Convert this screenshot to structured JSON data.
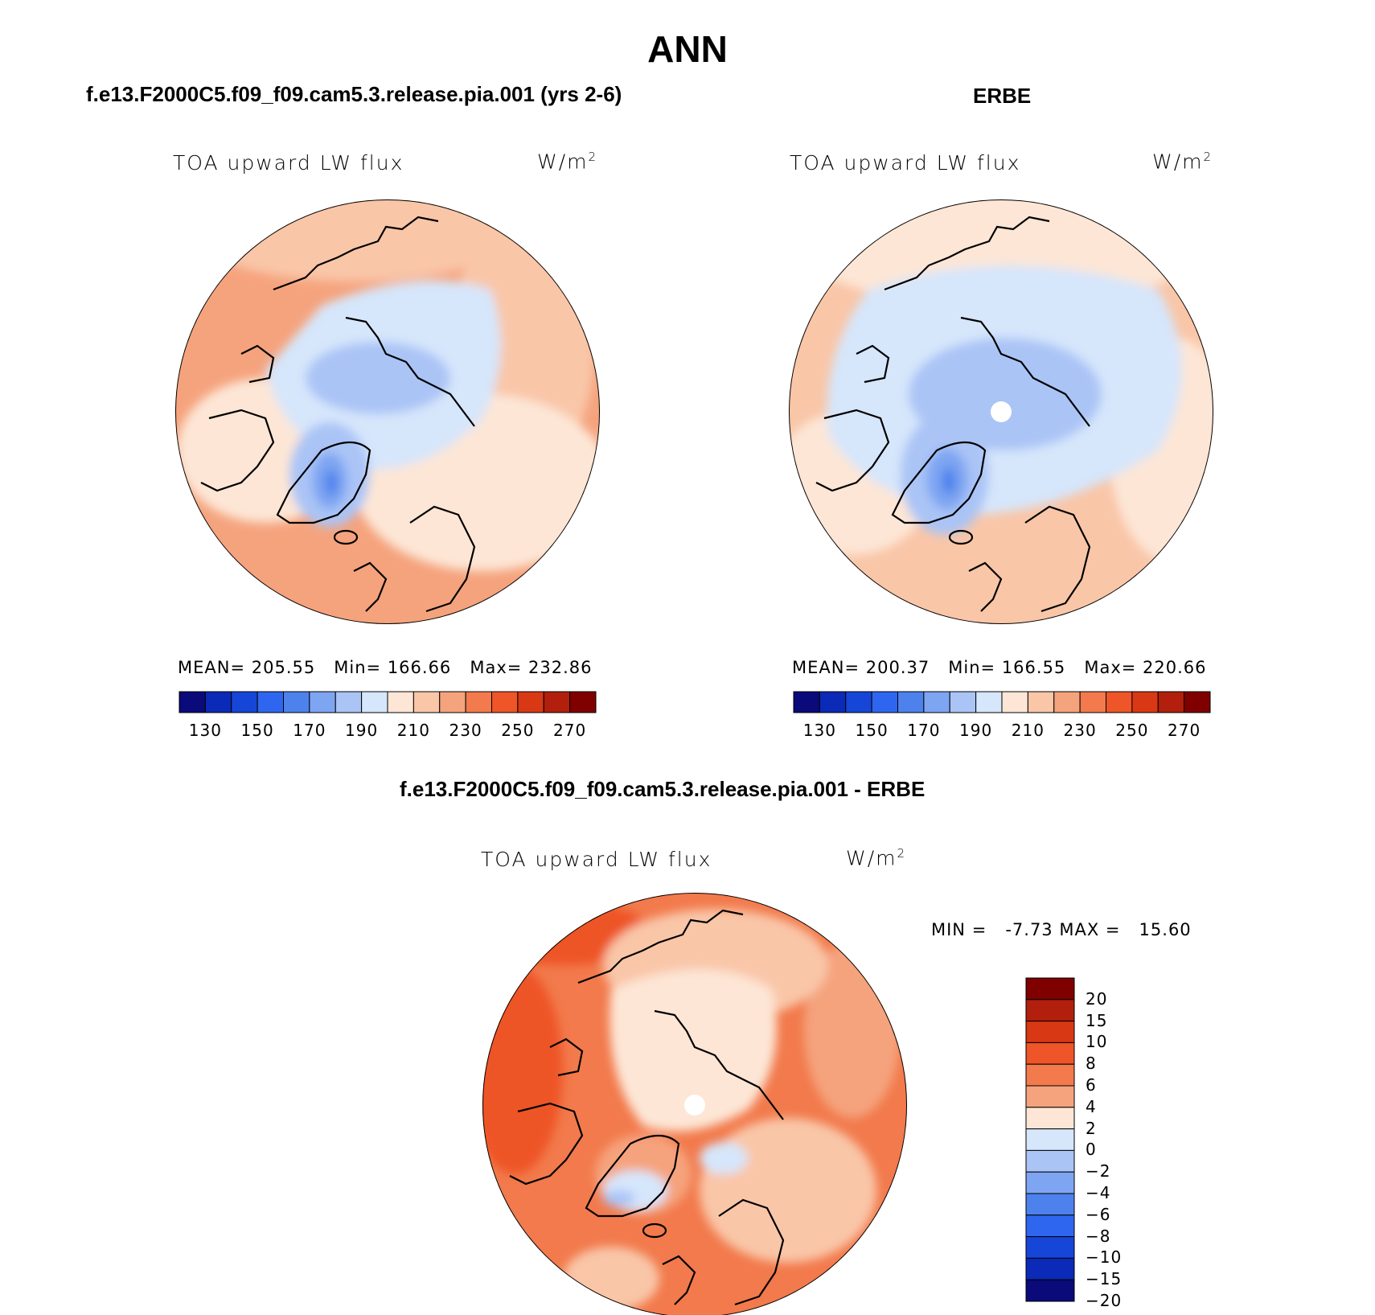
{
  "title": "ANN",
  "panels": [
    {
      "id": "model",
      "title": "f.e13.F2000C5.f09_f09.cam5.3.release.pia.001 (yrs 2-6)",
      "variable": "TOA upward LW flux",
      "units_base": "W/m",
      "units_exp": "2",
      "stats": {
        "mean_label": "MEAN=",
        "mean": "205.55",
        "min_label": "Min=",
        "min": "166.66",
        "max_label": "Max=",
        "max": "232.86"
      }
    },
    {
      "id": "obs",
      "title": "ERBE",
      "variable": "TOA upward LW flux",
      "units_base": "W/m",
      "units_exp": "2",
      "stats": {
        "mean_label": "MEAN=",
        "mean": "200.37",
        "min_label": "Min=",
        "min": "166.55",
        "max_label": "Max=",
        "max": "220.66"
      }
    },
    {
      "id": "diff",
      "title": "f.e13.F2000C5.f09_f09.cam5.3.release.pia.001 - ERBE",
      "variable": "TOA upward LW flux",
      "units_base": "W/m",
      "units_exp": "2",
      "stats": {
        "min_label": "MIN =",
        "min": "-7.73",
        "max_label": "MAX =",
        "max": "15.60"
      }
    }
  ],
  "colorbar_abs": {
    "colors": [
      "#0a0a7a",
      "#0b2ab8",
      "#1646d8",
      "#2f66f0",
      "#4d82ec",
      "#7ea5f2",
      "#aac4f6",
      "#d6e6fb",
      "#fde6d6",
      "#f9c6a8",
      "#f5a37d",
      "#f27a4c",
      "#ee5528",
      "#d93815",
      "#b21f0c",
      "#800000"
    ],
    "tick_labels": [
      "130",
      "150",
      "170",
      "190",
      "210",
      "230",
      "250",
      "270"
    ]
  },
  "colorbar_diff": {
    "colors": [
      "#800000",
      "#b21f0c",
      "#d93815",
      "#ee5528",
      "#f27a4c",
      "#f5a37d",
      "#fde6d6",
      "#d6e6fb",
      "#aac4f6",
      "#7ea5f2",
      "#4d82ec",
      "#2f66f0",
      "#1646d8",
      "#0b2ab8",
      "#0a0a7a"
    ],
    "tick_labels": [
      "20",
      "15",
      "10",
      "8",
      "6",
      "4",
      "2",
      "0",
      "−2",
      "−4",
      "−6",
      "−8",
      "−10",
      "−15",
      "−20"
    ]
  }
}
